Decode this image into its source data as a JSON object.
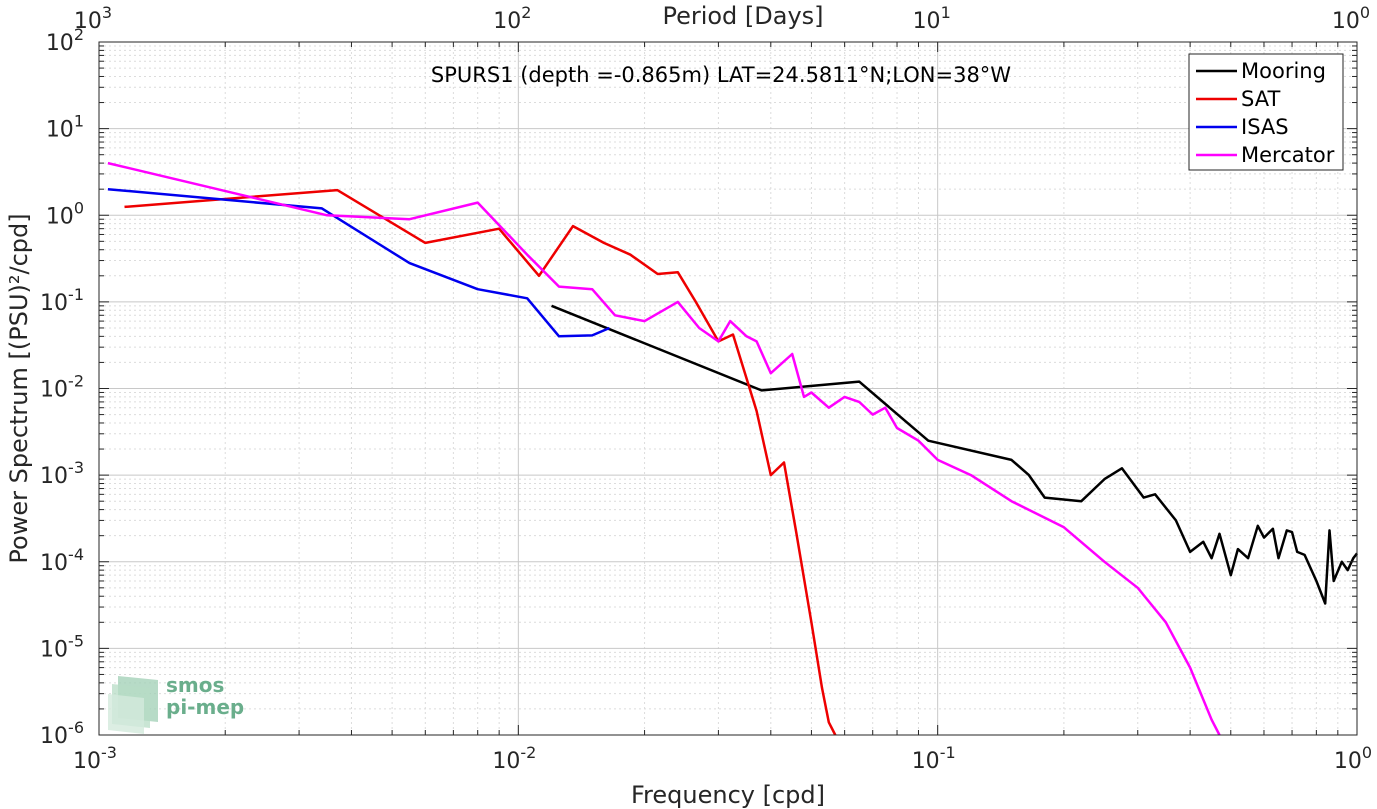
{
  "chart_data": {
    "type": "line",
    "title": "SPURS1 (depth =-0.865m) LAT=24.5811°N;LON=38°W",
    "xlabel": "Frequency [cpd]",
    "ylabel": "Power Spectrum [(PSU)²/cpd]",
    "top_xlabel": "Period [Days]",
    "xscale": "log",
    "yscale": "log",
    "xlim": [
      0.001,
      1
    ],
    "ylim": [
      1e-06,
      100
    ],
    "grid": true,
    "legend_position": "top-right",
    "x_ticks": [
      {
        "value": 0.001,
        "base": "10",
        "exp": "-3"
      },
      {
        "value": 0.01,
        "base": "10",
        "exp": "-2"
      },
      {
        "value": 0.1,
        "base": "10",
        "exp": "-1"
      },
      {
        "value": 1,
        "base": "10",
        "exp": "0"
      }
    ],
    "top_ticks": [
      {
        "value": 0.001,
        "base": "10",
        "exp": "3"
      },
      {
        "value": 0.01,
        "base": "10",
        "exp": "2"
      },
      {
        "value": 0.1,
        "base": "10",
        "exp": "1"
      },
      {
        "value": 1,
        "base": "10",
        "exp": "0"
      }
    ],
    "y_ticks": [
      {
        "value": 1e-06,
        "base": "10",
        "exp": "-6"
      },
      {
        "value": 1e-05,
        "base": "10",
        "exp": "-5"
      },
      {
        "value": 0.0001,
        "base": "10",
        "exp": "-4"
      },
      {
        "value": 0.001,
        "base": "10",
        "exp": "-3"
      },
      {
        "value": 0.01,
        "base": "10",
        "exp": "-2"
      },
      {
        "value": 0.1,
        "base": "10",
        "exp": "-1"
      },
      {
        "value": 1,
        "base": "10",
        "exp": "0"
      },
      {
        "value": 10,
        "base": "10",
        "exp": "1"
      },
      {
        "value": 100,
        "base": "10",
        "exp": "2"
      }
    ],
    "series": [
      {
        "name": "Mooring",
        "color": "#000000",
        "x": [
          0.012,
          0.038,
          0.065,
          0.095,
          0.15,
          0.165,
          0.18,
          0.22,
          0.25,
          0.275,
          0.31,
          0.33,
          0.37,
          0.4,
          0.43,
          0.45,
          0.47,
          0.5,
          0.52,
          0.55,
          0.58,
          0.6,
          0.63,
          0.65,
          0.68,
          0.7,
          0.72,
          0.75,
          0.8,
          0.84,
          0.86,
          0.88,
          0.92,
          0.95,
          0.98,
          1.0
        ],
        "y": [
          0.09,
          0.0095,
          0.012,
          0.0025,
          0.0015,
          0.001,
          0.00055,
          0.0005,
          0.0009,
          0.0012,
          0.00055,
          0.0006,
          0.0003,
          0.00013,
          0.00017,
          0.00011,
          0.00021,
          7e-05,
          0.00014,
          0.00011,
          0.00026,
          0.00019,
          0.00024,
          0.00011,
          0.00023,
          0.00022,
          0.00013,
          0.00012,
          6e-05,
          3.3e-05,
          0.00023,
          6e-05,
          0.0001,
          8e-05,
          0.00011,
          0.000125
        ]
      },
      {
        "name": "SAT",
        "color": "#ee0000",
        "x": [
          0.00115,
          0.0037,
          0.006,
          0.009,
          0.0112,
          0.0135,
          0.016,
          0.0185,
          0.0215,
          0.024,
          0.0265,
          0.03,
          0.0325,
          0.037,
          0.04,
          0.043,
          0.046,
          0.05,
          0.053,
          0.055,
          0.057
        ],
        "y": [
          1.25,
          1.95,
          0.48,
          0.7,
          0.2,
          0.75,
          0.48,
          0.35,
          0.21,
          0.22,
          0.1,
          0.035,
          0.042,
          0.0055,
          0.001,
          0.0014,
          0.00022,
          2e-05,
          3.5e-06,
          1.4e-06,
          1e-06
        ]
      },
      {
        "name": "ISAS",
        "color": "#0000ee",
        "x": [
          0.00105,
          0.0034,
          0.0055,
          0.008,
          0.0105,
          0.0125,
          0.015,
          0.0165
        ],
        "y": [
          2.0,
          1.2,
          0.28,
          0.14,
          0.11,
          0.04,
          0.041,
          0.05
        ]
      },
      {
        "name": "Mercator",
        "color": "#ff00ff",
        "x": [
          0.00105,
          0.0035,
          0.0055,
          0.008,
          0.0105,
          0.0125,
          0.015,
          0.017,
          0.02,
          0.024,
          0.027,
          0.03,
          0.032,
          0.035,
          0.037,
          0.04,
          0.045,
          0.048,
          0.05,
          0.055,
          0.06,
          0.065,
          0.07,
          0.075,
          0.08,
          0.09,
          0.1,
          0.12,
          0.15,
          0.2,
          0.25,
          0.3,
          0.35,
          0.4,
          0.45,
          0.47
        ],
        "y": [
          4.0,
          1.0,
          0.9,
          1.4,
          0.35,
          0.15,
          0.14,
          0.07,
          0.06,
          0.1,
          0.05,
          0.035,
          0.06,
          0.04,
          0.035,
          0.015,
          0.025,
          0.008,
          0.009,
          0.006,
          0.008,
          0.007,
          0.005,
          0.006,
          0.0035,
          0.0025,
          0.0015,
          0.001,
          0.0005,
          0.00025,
          0.0001,
          5e-05,
          2e-05,
          6e-06,
          1.5e-06,
          1e-06
        ]
      }
    ]
  },
  "logo": {
    "line1": "smos",
    "line2": "pi-mep",
    "color": "#6aae8c"
  }
}
